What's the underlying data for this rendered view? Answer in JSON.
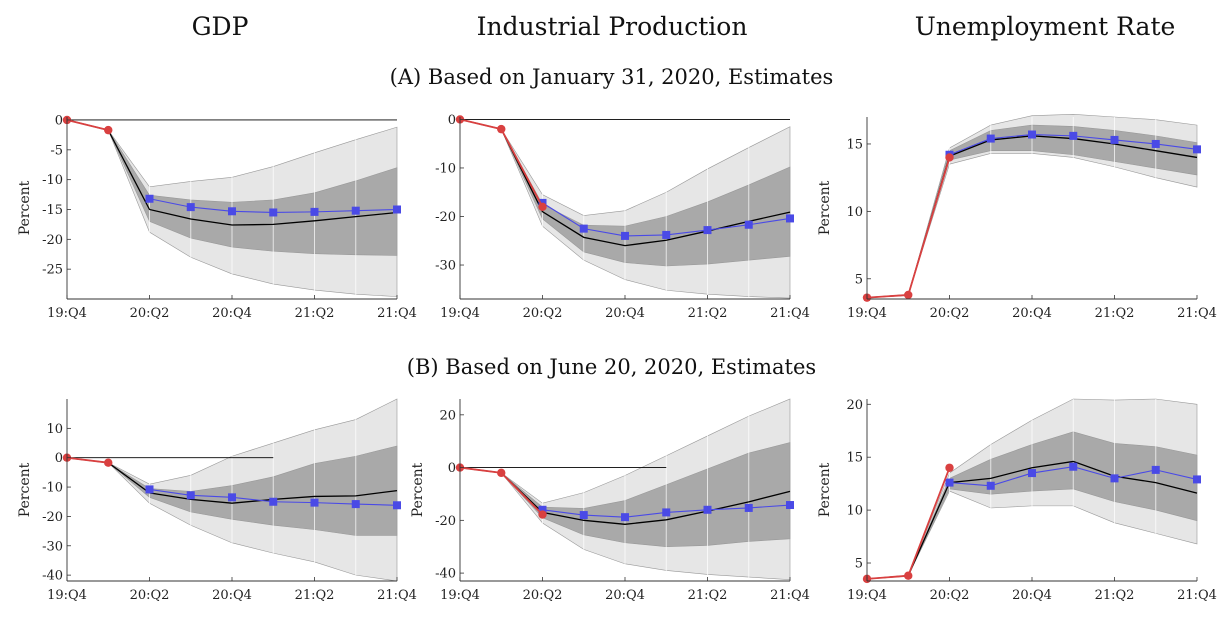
{
  "column_titles": [
    "GDP",
    "Industrial Production",
    "Unemployment Rate"
  ],
  "row_titles": [
    "(A) Based on January 31, 2020, Estimates",
    "(B) Based on June 20, 2020, Estimates"
  ],
  "colors": {
    "actual": "#d94040",
    "scenario": "#4a4ae6",
    "median": "#000000",
    "band_inner": "#a9a9a9",
    "band_outer": "#e6e6e6"
  },
  "chart_data": [
    {
      "type": "line",
      "panel": "A-GDP",
      "categories": [
        "19:Q4",
        "20:Q1",
        "20:Q2",
        "20:Q3",
        "20:Q4",
        "21:Q1",
        "21:Q2",
        "21:Q3",
        "21:Q4"
      ],
      "xtick_labels": [
        "19:Q4",
        "20:Q2",
        "20:Q4",
        "21:Q2",
        "21:Q4"
      ],
      "ylabel": "Percent",
      "ylim": [
        -30,
        0.5
      ],
      "yticks": [
        0,
        -5,
        -10,
        -15,
        -20,
        -25
      ],
      "zero_line": true,
      "zero_line_full": true,
      "actual": [
        0,
        -1.7
      ],
      "scenario": [
        null,
        null,
        -13.2,
        -14.6,
        -15.3,
        -15.5,
        -15.4,
        -15.2,
        -15.0
      ],
      "median": [
        0,
        -1.7,
        -15.0,
        -16.6,
        -17.6,
        -17.5,
        -16.9,
        -16.2,
        -15.5
      ],
      "inner_lower": [
        0,
        -1.7,
        -17.0,
        -19.8,
        -21.3,
        -22.0,
        -22.4,
        -22.6,
        -22.7
      ],
      "inner_upper": [
        0,
        -1.7,
        -12.6,
        -13.4,
        -13.8,
        -13.4,
        -12.2,
        -10.2,
        -8.0
      ],
      "outer_lower": [
        0,
        -1.7,
        -18.8,
        -23.0,
        -25.8,
        -27.5,
        -28.5,
        -29.2,
        -29.6
      ],
      "outer_upper": [
        0,
        -1.7,
        -11.2,
        -10.3,
        -9.6,
        -7.8,
        -5.5,
        -3.3,
        -1.2
      ]
    },
    {
      "type": "line",
      "panel": "A-IP",
      "categories": [
        "19:Q4",
        "20:Q1",
        "20:Q2",
        "20:Q3",
        "20:Q4",
        "21:Q1",
        "21:Q2",
        "21:Q3",
        "21:Q4"
      ],
      "xtick_labels": [
        "19:Q4",
        "20:Q2",
        "20:Q4",
        "21:Q2",
        "21:Q4"
      ],
      "ylabel": "",
      "ylim": [
        -37,
        0.5
      ],
      "yticks": [
        0,
        -10,
        -20,
        -30
      ],
      "zero_line": true,
      "zero_line_full": true,
      "actual": [
        0,
        -2.0,
        -18.0
      ],
      "scenario": [
        null,
        null,
        -17.2,
        -22.5,
        -24.0,
        -23.8,
        -22.8,
        -21.7,
        -20.4
      ],
      "median": [
        0,
        -2.0,
        -19.0,
        -24.3,
        -26.0,
        -24.9,
        -23.0,
        -21.0,
        -19.1
      ],
      "inner_lower": [
        0,
        -2.0,
        -20.5,
        -27.3,
        -29.5,
        -30.2,
        -29.8,
        -29.0,
        -28.2
      ],
      "inner_upper": [
        0,
        -2.0,
        -17.5,
        -21.8,
        -22.0,
        -20.0,
        -17.0,
        -13.5,
        -9.8
      ],
      "outer_lower": [
        0,
        -2.0,
        -22.0,
        -29.0,
        -33.0,
        -35.2,
        -36.0,
        -36.5,
        -36.8
      ],
      "outer_upper": [
        0,
        -2.0,
        -15.5,
        -19.8,
        -18.8,
        -15.0,
        -10.2,
        -5.8,
        -1.5
      ]
    },
    {
      "type": "line",
      "panel": "A-UR",
      "categories": [
        "19:Q4",
        "20:Q1",
        "20:Q2",
        "20:Q3",
        "20:Q4",
        "21:Q1",
        "21:Q2",
        "21:Q3",
        "21:Q4"
      ],
      "xtick_labels": [
        "19:Q4",
        "20:Q2",
        "20:Q4",
        "21:Q2",
        "21:Q4"
      ],
      "ylabel": "Percent",
      "ylim": [
        3.5,
        17
      ],
      "yticks": [
        5,
        10,
        15
      ],
      "zero_line": false,
      "actual": [
        3.6,
        3.8,
        14.0
      ],
      "scenario": [
        null,
        null,
        14.2,
        15.4,
        15.7,
        15.6,
        15.3,
        15.0,
        14.6
      ],
      "median": [
        3.6,
        3.8,
        14.1,
        15.3,
        15.6,
        15.4,
        15.0,
        14.5,
        14.0
      ],
      "inner_lower": [
        3.6,
        3.8,
        13.8,
        14.5,
        14.5,
        14.2,
        13.7,
        13.2,
        12.7
      ],
      "inner_upper": [
        3.6,
        3.8,
        14.5,
        16.0,
        16.4,
        16.3,
        16.0,
        15.6,
        15.1
      ],
      "outer_lower": [
        3.6,
        3.8,
        13.5,
        14.3,
        14.3,
        14.0,
        13.3,
        12.5,
        11.8
      ],
      "outer_upper": [
        3.6,
        3.8,
        14.7,
        16.4,
        17.1,
        17.2,
        17.0,
        16.8,
        16.4
      ]
    },
    {
      "type": "line",
      "panel": "B-GDP",
      "categories": [
        "19:Q4",
        "20:Q1",
        "20:Q2",
        "20:Q3",
        "20:Q4",
        "21:Q1",
        "21:Q2",
        "21:Q3",
        "21:Q4"
      ],
      "xtick_labels": [
        "19:Q4",
        "20:Q2",
        "20:Q4",
        "21:Q2",
        "21:Q4"
      ],
      "ylabel": "Percent",
      "ylim": [
        -42,
        20
      ],
      "yticks": [
        10,
        0,
        -10,
        -20,
        -30,
        -40
      ],
      "zero_line": true,
      "zero_line_full": false,
      "actual": [
        0,
        -1.7
      ],
      "scenario": [
        null,
        null,
        -10.8,
        -12.8,
        -13.5,
        -15.0,
        -15.3,
        -15.8,
        -16.2
      ],
      "median": [
        0,
        -1.7,
        -12.0,
        -14.2,
        -15.5,
        -14.2,
        -13.2,
        -13.0,
        -11.2
      ],
      "inner_lower": [
        0,
        -1.7,
        -13.5,
        -18.5,
        -21.0,
        -23.0,
        -24.5,
        -26.5,
        -26.5
      ],
      "inner_upper": [
        0,
        -1.7,
        -10.5,
        -11.5,
        -9.5,
        -6.5,
        -2.0,
        0.5,
        4.0
      ],
      "outer_lower": [
        0,
        -1.7,
        -15.5,
        -23.0,
        -29.0,
        -32.5,
        -35.5,
        -40.0,
        -42.0
      ],
      "outer_upper": [
        0,
        -1.7,
        -9.0,
        -6.0,
        0.5,
        5.0,
        9.5,
        13.0,
        20.0
      ]
    },
    {
      "type": "line",
      "panel": "B-IP",
      "categories": [
        "19:Q4",
        "20:Q1",
        "20:Q2",
        "20:Q3",
        "20:Q4",
        "21:Q1",
        "21:Q2",
        "21:Q3",
        "21:Q4"
      ],
      "xtick_labels": [
        "19:Q4",
        "20:Q2",
        "20:Q4",
        "21:Q2",
        "21:Q4"
      ],
      "ylabel": "Percent",
      "ylim": [
        -43,
        26
      ],
      "yticks": [
        20,
        0,
        -20,
        -40
      ],
      "zero_line": true,
      "zero_line_full": false,
      "actual": [
        0,
        -2.0,
        -17.8
      ],
      "scenario": [
        null,
        null,
        -16.0,
        -18.0,
        -18.8,
        -17.0,
        -16.0,
        -15.3,
        -14.2
      ],
      "median": [
        0,
        -2.0,
        -17.0,
        -20.0,
        -21.5,
        -19.8,
        -16.5,
        -13.0,
        -9.0
      ],
      "inner_lower": [
        0,
        -2.0,
        -19.0,
        -25.5,
        -28.5,
        -30.0,
        -29.5,
        -28.0,
        -27.0
      ],
      "inner_upper": [
        0,
        -2.0,
        -15.0,
        -15.5,
        -12.5,
        -6.5,
        -0.5,
        5.5,
        9.5
      ],
      "outer_lower": [
        0,
        -2.0,
        -21.0,
        -31.0,
        -36.5,
        -39.0,
        -40.5,
        -41.5,
        -42.5
      ],
      "outer_upper": [
        0,
        -2.0,
        -13.5,
        -9.5,
        -3.0,
        4.5,
        12.0,
        19.5,
        26.0
      ]
    },
    {
      "type": "line",
      "panel": "B-UR",
      "categories": [
        "19:Q4",
        "20:Q1",
        "20:Q2",
        "20:Q3",
        "20:Q4",
        "21:Q1",
        "21:Q2",
        "21:Q3",
        "21:Q4"
      ],
      "xtick_labels": [
        "19:Q4",
        "20:Q2",
        "20:Q4",
        "21:Q2",
        "21:Q4"
      ],
      "ylabel": "Percent",
      "ylim": [
        3.3,
        20.5
      ],
      "yticks": [
        5,
        10,
        15,
        20
      ],
      "zero_line": false,
      "actual": [
        3.5,
        3.8,
        14.0
      ],
      "scenario": [
        null,
        null,
        12.6,
        12.3,
        13.5,
        14.1,
        13.0,
        13.8,
        12.9
      ],
      "median": [
        3.5,
        3.8,
        12.6,
        13.0,
        14.0,
        14.6,
        13.2,
        12.6,
        11.6
      ],
      "inner_lower": [
        3.5,
        3.8,
        12.0,
        11.5,
        11.8,
        12.0,
        10.8,
        10.0,
        9.0
      ],
      "inner_upper": [
        3.5,
        3.8,
        13.0,
        14.8,
        16.2,
        17.4,
        16.3,
        16.0,
        15.2
      ],
      "outer_lower": [
        3.5,
        3.8,
        11.8,
        10.2,
        10.4,
        10.4,
        8.8,
        7.8,
        6.8
      ],
      "outer_upper": [
        3.5,
        3.8,
        13.5,
        16.2,
        18.5,
        20.5,
        20.4,
        20.5,
        20.0
      ]
    }
  ]
}
